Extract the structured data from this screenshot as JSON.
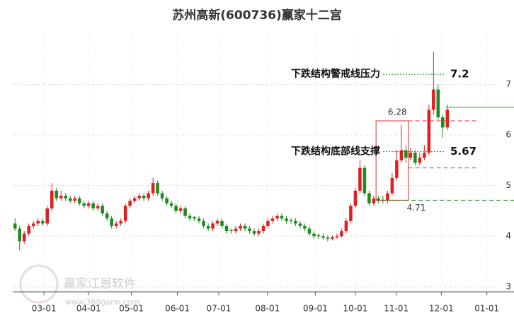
{
  "chart_data": {
    "type": "candlestick",
    "title": "苏州高新(600736)赢家十二宫",
    "up_color": "#e02020",
    "down_color": "#1f8a1f",
    "xlim": [
      0,
      109
    ],
    "ylim": [
      2.9,
      8.04
    ],
    "yticks": [
      3,
      4,
      5,
      6,
      7
    ],
    "grid": true,
    "xticks": [
      {
        "value": 6.8,
        "label": "03-01"
      },
      {
        "value": 16.5,
        "label": "04-01"
      },
      {
        "value": 25.8,
        "label": "05-01"
      },
      {
        "value": 35.8,
        "label": "06-01"
      },
      {
        "value": 44.8,
        "label": "07-01"
      },
      {
        "value": 55.4,
        "label": "08-01"
      },
      {
        "value": 65.8,
        "label": "09-01"
      },
      {
        "value": 74.5,
        "label": "10-01"
      },
      {
        "value": 83.4,
        "label": "11-01"
      },
      {
        "value": 93.2,
        "label": "12-01"
      },
      {
        "value": 103.1,
        "label": "01-01"
      }
    ],
    "candles": [
      [
        4.25,
        4.35,
        4.1,
        4.15
      ],
      [
        4.15,
        4.2,
        3.72,
        3.9
      ],
      [
        3.9,
        4.1,
        3.85,
        4.05
      ],
      [
        4.05,
        4.25,
        4.0,
        4.2
      ],
      [
        4.2,
        4.3,
        4.15,
        4.25
      ],
      [
        4.25,
        4.35,
        4.2,
        4.3
      ],
      [
        4.3,
        4.35,
        4.2,
        4.25
      ],
      [
        4.25,
        4.6,
        4.2,
        4.55
      ],
      [
        4.55,
        5.05,
        4.5,
        4.9
      ],
      [
        4.9,
        4.95,
        4.7,
        4.75
      ],
      [
        4.75,
        4.9,
        4.7,
        4.8
      ],
      [
        4.8,
        4.85,
        4.7,
        4.75
      ],
      [
        4.75,
        4.8,
        4.65,
        4.7
      ],
      [
        4.7,
        4.8,
        4.65,
        4.75
      ],
      [
        4.75,
        4.8,
        4.6,
        4.65
      ],
      [
        4.65,
        4.7,
        4.55,
        4.6
      ],
      [
        4.6,
        4.7,
        4.55,
        4.65
      ],
      [
        4.65,
        4.7,
        4.5,
        4.55
      ],
      [
        4.55,
        4.65,
        4.5,
        4.6
      ],
      [
        4.6,
        4.65,
        4.4,
        4.45
      ],
      [
        4.45,
        4.5,
        4.3,
        4.35
      ],
      [
        4.35,
        4.4,
        4.15,
        4.2
      ],
      [
        4.2,
        4.3,
        4.15,
        4.25
      ],
      [
        4.25,
        4.35,
        4.2,
        4.3
      ],
      [
        4.3,
        4.65,
        4.25,
        4.6
      ],
      [
        4.6,
        4.75,
        4.55,
        4.7
      ],
      [
        4.7,
        4.8,
        4.65,
        4.75
      ],
      [
        4.75,
        4.85,
        4.7,
        4.8
      ],
      [
        4.8,
        4.85,
        4.7,
        4.75
      ],
      [
        4.75,
        4.9,
        4.7,
        4.85
      ],
      [
        4.85,
        5.15,
        4.8,
        5.05
      ],
      [
        5.05,
        5.1,
        4.8,
        4.85
      ],
      [
        4.85,
        4.9,
        4.7,
        4.75
      ],
      [
        4.75,
        4.8,
        4.6,
        4.65
      ],
      [
        4.65,
        4.7,
        4.55,
        4.6
      ],
      [
        4.6,
        4.65,
        4.45,
        4.5
      ],
      [
        4.5,
        4.6,
        4.45,
        4.55
      ],
      [
        4.55,
        4.6,
        4.35,
        4.4
      ],
      [
        4.4,
        4.45,
        4.3,
        4.35
      ],
      [
        4.38,
        4.4,
        4.3,
        4.35
      ],
      [
        4.35,
        4.4,
        4.25,
        4.3
      ],
      [
        4.3,
        4.35,
        4.15,
        4.2
      ],
      [
        4.2,
        4.25,
        4.1,
        4.15
      ],
      [
        4.15,
        4.3,
        4.1,
        4.25
      ],
      [
        4.25,
        4.35,
        4.2,
        4.3
      ],
      [
        4.3,
        4.35,
        4.15,
        4.2
      ],
      [
        4.2,
        4.25,
        4.05,
        4.1
      ],
      [
        4.12,
        4.15,
        4.05,
        4.1
      ],
      [
        4.1,
        4.2,
        4.05,
        4.15
      ],
      [
        4.15,
        4.25,
        4.1,
        4.2
      ],
      [
        4.2,
        4.25,
        4.1,
        4.15
      ],
      [
        4.15,
        4.2,
        4.05,
        4.1
      ],
      [
        4.1,
        4.15,
        4.0,
        4.05
      ],
      [
        4.05,
        4.15,
        4.0,
        4.1
      ],
      [
        4.1,
        4.25,
        4.05,
        4.2
      ],
      [
        4.2,
        4.35,
        4.15,
        4.3
      ],
      [
        4.3,
        4.4,
        4.25,
        4.35
      ],
      [
        4.35,
        4.45,
        4.3,
        4.4
      ],
      [
        4.4,
        4.45,
        4.3,
        4.35
      ],
      [
        4.35,
        4.4,
        4.25,
        4.3
      ],
      [
        4.32,
        4.35,
        4.25,
        4.3
      ],
      [
        4.3,
        4.35,
        4.2,
        4.25
      ],
      [
        4.25,
        4.3,
        4.15,
        4.2
      ],
      [
        4.2,
        4.25,
        4.1,
        4.15
      ],
      [
        4.15,
        4.2,
        4.0,
        4.05
      ],
      [
        4.05,
        4.1,
        3.95,
        4.0
      ],
      [
        4.02,
        4.05,
        3.95,
        4.0
      ],
      [
        4.0,
        4.05,
        3.93,
        3.97
      ],
      [
        3.97,
        4.02,
        3.9,
        3.95
      ],
      [
        3.95,
        4.02,
        3.92,
        3.98
      ],
      [
        3.98,
        4.05,
        3.95,
        4.0
      ],
      [
        4.0,
        4.15,
        3.97,
        4.1
      ],
      [
        4.1,
        4.35,
        4.05,
        4.3
      ],
      [
        4.3,
        4.65,
        4.25,
        4.6
      ],
      [
        4.6,
        4.95,
        4.55,
        4.9
      ],
      [
        4.9,
        5.5,
        4.85,
        5.35
      ],
      [
        5.35,
        5.4,
        4.8,
        4.85
      ],
      [
        4.85,
        4.9,
        4.6,
        4.65
      ],
      [
        4.65,
        4.8,
        4.6,
        4.75
      ],
      [
        4.75,
        4.8,
        4.65,
        4.7
      ],
      [
        4.72,
        4.8,
        4.65,
        4.7
      ],
      [
        4.7,
        4.9,
        4.65,
        4.85
      ],
      [
        4.85,
        5.25,
        4.8,
        5.15
      ],
      [
        5.15,
        5.7,
        5.1,
        5.5
      ],
      [
        5.5,
        6.2,
        5.45,
        5.7
      ],
      [
        5.7,
        5.8,
        5.45,
        5.55
      ],
      [
        5.55,
        5.75,
        5.5,
        5.65
      ],
      [
        5.65,
        5.7,
        5.4,
        5.45
      ],
      [
        5.45,
        5.65,
        5.4,
        5.55
      ],
      [
        5.55,
        5.8,
        5.5,
        5.65
      ],
      [
        5.65,
        6.6,
        5.6,
        6.5
      ],
      [
        6.5,
        7.65,
        6.4,
        6.9
      ],
      [
        6.9,
        7.0,
        6.3,
        6.35
      ],
      [
        6.35,
        6.4,
        5.95,
        6.15
      ],
      [
        6.15,
        6.6,
        6.1,
        6.5
      ]
    ],
    "resistance": {
      "label": "下跌结构警戒线压力",
      "value": 7.2
    },
    "support": {
      "label": "下跌结构底部线支撑",
      "value": 5.67
    },
    "box": {
      "xlim": [
        79,
        86
      ],
      "top": 6.28,
      "bottom": 4.71,
      "color": "#e03030",
      "bottom_color": "#2e8b2e"
    },
    "levels": [
      {
        "value": 5.35,
        "color": "#e03030"
      },
      {
        "value": 6.55,
        "color": "#2e8b2e"
      }
    ],
    "watermark": {
      "name": "赢家江恩软件",
      "url": "www.360gann.com"
    }
  }
}
